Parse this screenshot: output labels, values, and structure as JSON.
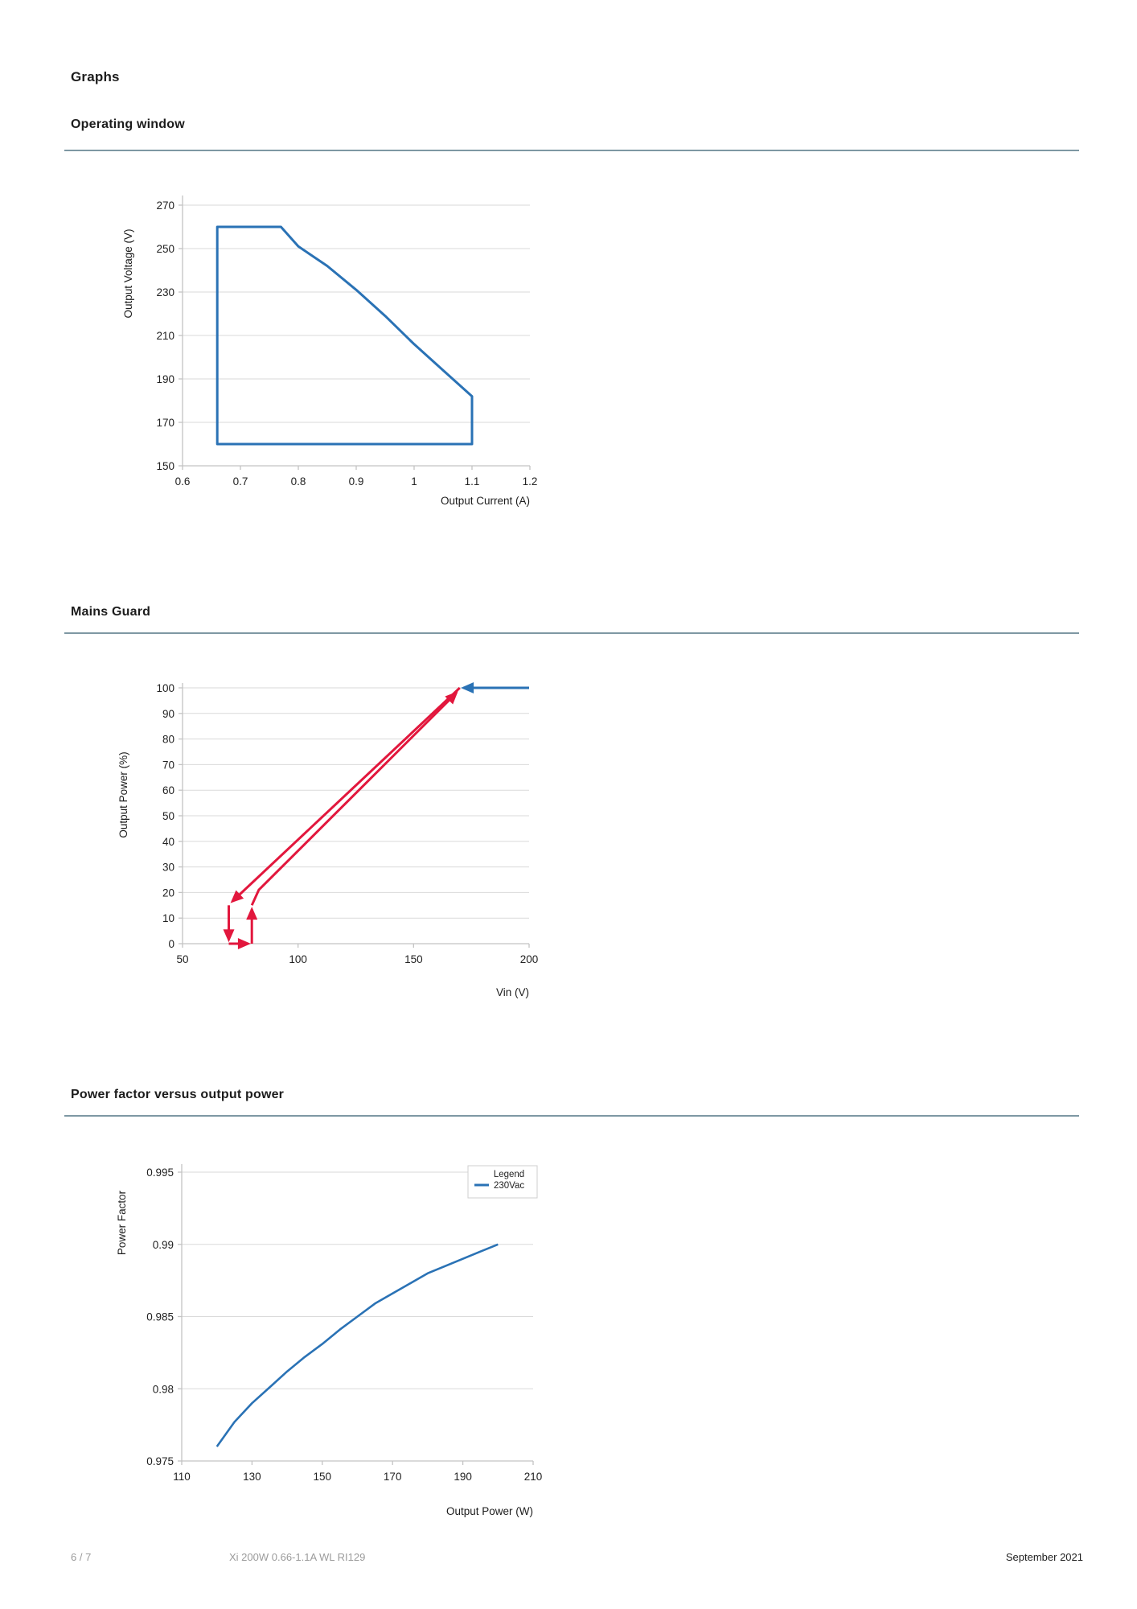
{
  "page": {
    "title": "Graphs",
    "footer": {
      "page_number": "6 / 7",
      "product": "Xi 200W 0.66-1.1A WL RI129",
      "date": "September 2021"
    }
  },
  "colors": {
    "blue": "#2a72b5",
    "red": "#e2173d",
    "grid": "#dadada",
    "axis": "#c3c3c3",
    "rule": "#7e98a3",
    "legend_border": "#cfcfcf",
    "text": "#1c1c1c",
    "muted": "#9b9b9b"
  },
  "chart_data": [
    {
      "name": "operating-window",
      "section_title": "Operating window",
      "type": "line",
      "xlabel": "Output Current (A)",
      "ylabel": "Output Voltage (V)",
      "xlim": [
        0.6,
        1.2
      ],
      "ylim": [
        150,
        270
      ],
      "grid": "horizontal",
      "xticks": [
        {
          "v": 0.6,
          "label": "0.6"
        },
        {
          "v": 0.7,
          "label": "0.7"
        },
        {
          "v": 0.8,
          "label": "0.8"
        },
        {
          "v": 0.9,
          "label": "0.9"
        },
        {
          "v": 1.0,
          "label": "1"
        },
        {
          "v": 1.1,
          "label": "1.1"
        },
        {
          "v": 1.2,
          "label": "1.2"
        }
      ],
      "yticks": [
        {
          "v": 150,
          "label": "150"
        },
        {
          "v": 170,
          "label": "170"
        },
        {
          "v": 190,
          "label": "190"
        },
        {
          "v": 210,
          "label": "210"
        },
        {
          "v": 230,
          "label": "230"
        },
        {
          "v": 250,
          "label": "250"
        },
        {
          "v": 270,
          "label": "270"
        }
      ],
      "lines": [
        {
          "name": "operating-window-boundary",
          "color": "blue",
          "width": 3,
          "closed": true,
          "points": [
            [
              0.66,
              160
            ],
            [
              0.66,
              260
            ],
            [
              0.77,
              260
            ],
            [
              0.8,
              251
            ],
            [
              0.85,
              242
            ],
            [
              0.9,
              231
            ],
            [
              0.95,
              219
            ],
            [
              1.0,
              206
            ],
            [
              1.05,
              194
            ],
            [
              1.1,
              182
            ],
            [
              1.1,
              160
            ]
          ]
        }
      ]
    },
    {
      "name": "mains-guard",
      "section_title": "Mains Guard",
      "type": "line",
      "xlabel": "Vin (V)",
      "ylabel": "Output Power (%)",
      "xlim": [
        50,
        200
      ],
      "ylim": [
        0,
        100
      ],
      "grid": "horizontal",
      "xticks": [
        {
          "v": 50,
          "label": "50"
        },
        {
          "v": 100,
          "label": "100"
        },
        {
          "v": 150,
          "label": "150"
        },
        {
          "v": 200,
          "label": "200"
        }
      ],
      "yticks": [
        {
          "v": 0,
          "label": "0"
        },
        {
          "v": 10,
          "label": "10"
        },
        {
          "v": 20,
          "label": "20"
        },
        {
          "v": 30,
          "label": "30"
        },
        {
          "v": 40,
          "label": "40"
        },
        {
          "v": 50,
          "label": "50"
        },
        {
          "v": 60,
          "label": "60"
        },
        {
          "v": 70,
          "label": "70"
        },
        {
          "v": 80,
          "label": "80"
        },
        {
          "v": 90,
          "label": "90"
        },
        {
          "v": 100,
          "label": "100"
        }
      ],
      "lines": [
        {
          "name": "full-power-line",
          "color": "blue",
          "width": 3,
          "arrow_end": true,
          "points": [
            [
              200,
              100
            ],
            [
              171.5,
              100
            ]
          ]
        },
        {
          "name": "power-ramp-down",
          "color": "red",
          "width": 3,
          "arrow_end": true,
          "points": [
            [
              170,
              100
            ],
            [
              71.5,
              16.5
            ]
          ]
        },
        {
          "name": "shutoff-drop",
          "color": "red",
          "width": 3,
          "arrow_end": true,
          "points": [
            [
              70,
              15
            ],
            [
              70,
              1.5
            ]
          ]
        },
        {
          "name": "restart-shift",
          "color": "red",
          "width": 3,
          "arrow_end": true,
          "points": [
            [
              70,
              0
            ],
            [
              78.5,
              0
            ]
          ]
        },
        {
          "name": "restart-rise",
          "color": "red",
          "width": 3,
          "arrow_end": true,
          "points": [
            [
              80,
              0
            ],
            [
              80,
              13.5
            ]
          ]
        },
        {
          "name": "power-ramp-up",
          "color": "red",
          "width": 3,
          "arrow_end": true,
          "points": [
            [
              80,
              15
            ],
            [
              83,
              21
            ],
            [
              168.5,
              98
            ]
          ]
        }
      ]
    },
    {
      "name": "power-factor",
      "section_title": "Power factor versus output power",
      "type": "line",
      "xlabel": "Output Power (W)",
      "ylabel": "Power Factor",
      "xlim": [
        110,
        210
      ],
      "ylim": [
        0.975,
        0.995
      ],
      "grid": "horizontal",
      "legend": {
        "title": "Legend",
        "position": "top-right",
        "entries": [
          {
            "label": "230Vac",
            "color": "blue"
          }
        ]
      },
      "xticks": [
        {
          "v": 110,
          "label": "110"
        },
        {
          "v": 130,
          "label": "130"
        },
        {
          "v": 150,
          "label": "150"
        },
        {
          "v": 170,
          "label": "170"
        },
        {
          "v": 190,
          "label": "190"
        },
        {
          "v": 210,
          "label": "210"
        }
      ],
      "yticks": [
        {
          "v": 0.975,
          "label": "0.975"
        },
        {
          "v": 0.98,
          "label": "0.98"
        },
        {
          "v": 0.985,
          "label": "0.985"
        },
        {
          "v": 0.99,
          "label": "0.99"
        },
        {
          "v": 0.995,
          "label": "0.995"
        }
      ],
      "lines": [
        {
          "name": "pf-curve-230vac",
          "color": "blue",
          "width": 2.6,
          "points": [
            [
              120,
              0.976
            ],
            [
              125,
              0.9777
            ],
            [
              130,
              0.979
            ],
            [
              135,
              0.9801
            ],
            [
              140,
              0.9812
            ],
            [
              145,
              0.9822
            ],
            [
              150,
              0.9831
            ],
            [
              155,
              0.9841
            ],
            [
              160,
              0.985
            ],
            [
              165,
              0.9859
            ],
            [
              170,
              0.9866
            ],
            [
              175,
              0.9873
            ],
            [
              180,
              0.988
            ],
            [
              185,
              0.9885
            ],
            [
              190,
              0.989
            ],
            [
              195,
              0.9895
            ],
            [
              200,
              0.99
            ]
          ]
        }
      ]
    }
  ]
}
